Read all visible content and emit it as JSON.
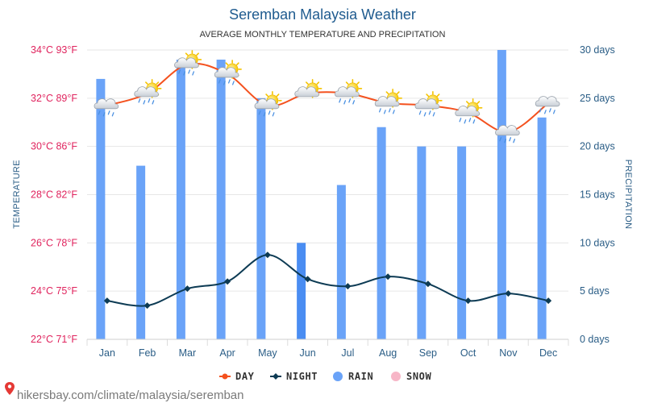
{
  "title": "Seremban Malaysia Weather",
  "subtitle": "AVERAGE MONTHLY TEMPERATURE AND PRECIPITATION",
  "footer": "hikersbay.com/climate/malaysia/seremban",
  "legend": [
    {
      "label": "DAY",
      "color": "#f4511e",
      "marker": "line-dot"
    },
    {
      "label": "NIGHT",
      "color": "#0d3b54",
      "marker": "line-diamond"
    },
    {
      "label": "RAIN",
      "color": "#6aa3f8",
      "marker": "circle"
    },
    {
      "label": "SNOW",
      "color": "#f7b6c7",
      "marker": "circle"
    }
  ],
  "chart_data": {
    "type": "bar",
    "title": "Seremban Malaysia Weather",
    "subtitle": "AVERAGE MONTHLY TEMPERATURE AND PRECIPITATION",
    "categories": [
      "Jan",
      "Feb",
      "Mar",
      "Apr",
      "May",
      "Jun",
      "Jul",
      "Aug",
      "Sep",
      "Oct",
      "Nov",
      "Dec"
    ],
    "y_left": {
      "label": "TEMPERATURE",
      "range": [
        22,
        34
      ],
      "ticks": [
        {
          "value": 22,
          "label": "22°C 71°F"
        },
        {
          "value": 24,
          "label": "24°C 75°F"
        },
        {
          "value": 26,
          "label": "26°C 78°F"
        },
        {
          "value": 28,
          "label": "28°C 82°F"
        },
        {
          "value": 30,
          "label": "30°C 86°F"
        },
        {
          "value": 32,
          "label": "32°C 89°F"
        },
        {
          "value": 34,
          "label": "34°C 93°F"
        }
      ]
    },
    "y_right": {
      "label": "PRECIPITATION",
      "range": [
        0,
        30
      ],
      "ticks": [
        {
          "value": 0,
          "label": "0 days"
        },
        {
          "value": 5,
          "label": "5 days"
        },
        {
          "value": 10,
          "label": "10 days"
        },
        {
          "value": 15,
          "label": "15 days"
        },
        {
          "value": 20,
          "label": "20 days"
        },
        {
          "value": 25,
          "label": "25 days"
        },
        {
          "value": 30,
          "label": "30 days"
        }
      ]
    },
    "grid": true,
    "legend_position": "bottom",
    "series": [
      {
        "name": "RAIN",
        "type": "bar",
        "axis": "right",
        "color": "#6aa3f8",
        "highlight_color": "#4a8df2",
        "highlight_index": 5,
        "values": [
          27,
          18,
          29,
          29,
          25,
          10,
          16,
          22,
          20,
          20,
          30,
          23
        ]
      },
      {
        "name": "SNOW",
        "type": "bar",
        "axis": "right",
        "color": "#f7b6c7",
        "values": [
          0,
          0,
          0,
          0,
          0,
          0,
          0,
          0,
          0,
          0,
          0,
          0
        ]
      },
      {
        "name": "DAY",
        "type": "line",
        "axis": "left",
        "color": "#f4511e",
        "values": [
          31.7,
          32.2,
          33.4,
          33.0,
          31.7,
          32.2,
          32.2,
          31.8,
          31.7,
          31.4,
          30.6,
          31.8
        ]
      },
      {
        "name": "NIGHT",
        "type": "line",
        "axis": "left",
        "color": "#0d3b54",
        "values": [
          23.6,
          23.4,
          24.1,
          24.4,
          25.5,
          24.5,
          24.2,
          24.6,
          24.3,
          23.6,
          23.9,
          23.6
        ]
      }
    ],
    "weather_icons": [
      "cloud-rain-icon",
      "sun-cloud-rain-icon",
      "sun-cloud-rain-icon",
      "sun-cloud-rain-icon",
      "sun-cloud-rain-icon",
      "sun-cloud-icon",
      "sun-cloud-rain-icon",
      "sun-cloud-rain-icon",
      "sun-cloud-rain-icon",
      "sun-cloud-rain-icon",
      "cloud-rain-icon",
      "cloud-rain-icon"
    ]
  }
}
